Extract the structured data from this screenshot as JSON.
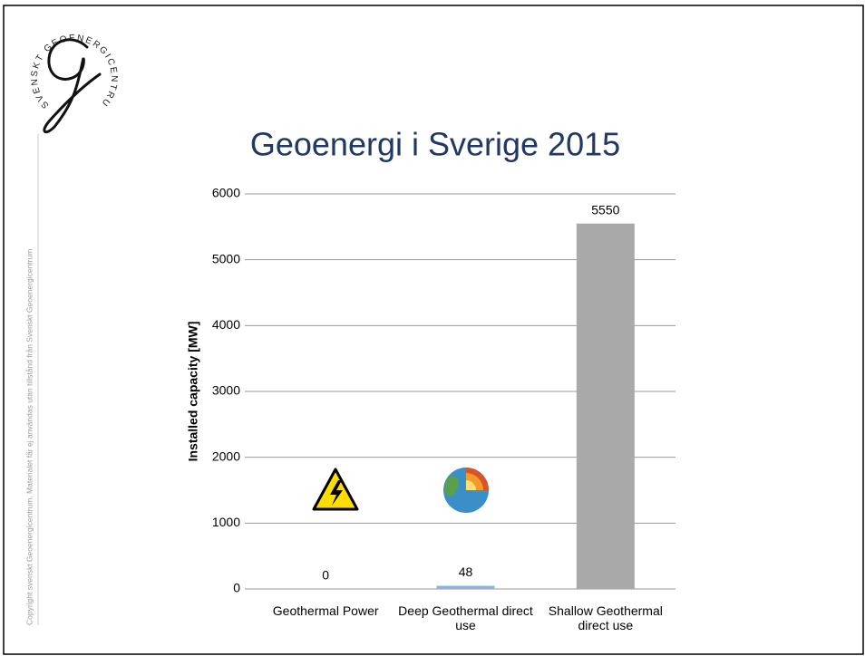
{
  "logo": {
    "text": "SVENSKT GEOENERGICENTRUM"
  },
  "copyright": "Copyright svenskt Geoenergicentrum. Materialet får ej användas utan tillstånd från Svenskt Geoenergicentrum",
  "chart_data": {
    "type": "bar",
    "title": "Geoenergi i Sverige 2015",
    "y_label": "Installed capacity [MW]",
    "categories": [
      "Geothermal Power",
      "Deep Geothermal direct use",
      "Shallow Geothermal direct use"
    ],
    "values": [
      0,
      48,
      5550
    ],
    "colors": [
      "#8db3e2",
      "#8db3e2",
      "#a9a9a9"
    ],
    "ylim": [
      0,
      6000
    ],
    "yticks": [
      0,
      1000,
      2000,
      3000,
      4000,
      5000,
      6000
    ],
    "grid": true
  }
}
